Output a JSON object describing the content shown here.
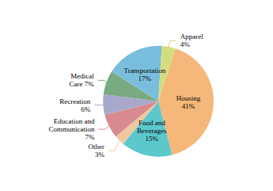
{
  "chart_data": {
    "type": "pie",
    "values": [
      41,
      15,
      3,
      7,
      6,
      7,
      17,
      4
    ],
    "value_labels": [
      "Housing\n41%",
      "Food and\nBeverages\n15%",
      "Other\n3%",
      "Education and\nCommunication\n7%",
      "Recreation\n6%",
      "Medical\nCare 7%",
      "Transportation\n17%",
      "Apparel\n4%"
    ],
    "colors": [
      "#F5B87A",
      "#5DC8CC",
      "#F0C8A0",
      "#D98A90",
      "#A8A8CC",
      "#7AAA80",
      "#7ABEDD",
      "#D4DC80"
    ],
    "data_labels": true
  }
}
